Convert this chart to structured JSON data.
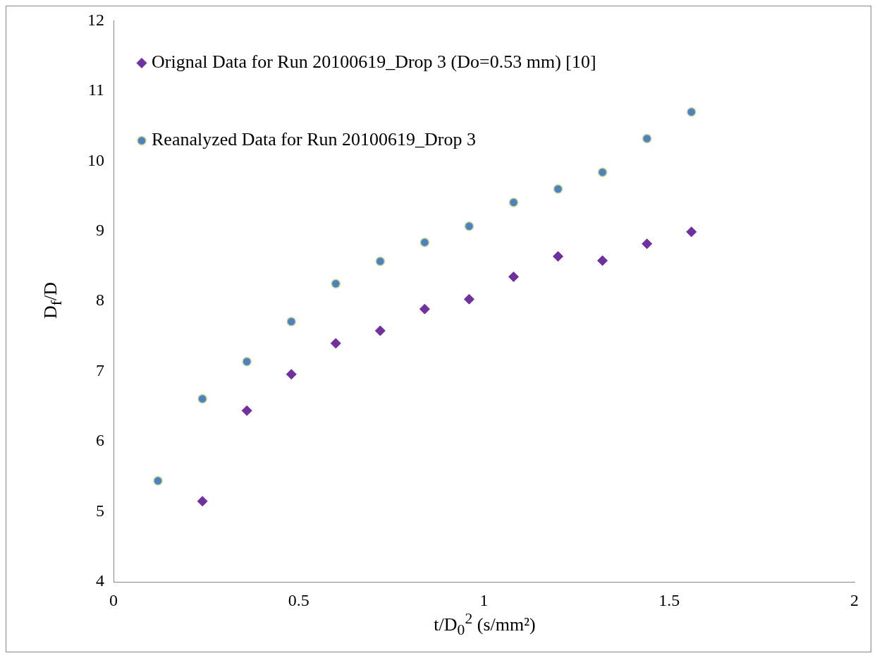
{
  "chart_data": {
    "type": "scatter",
    "xlabel": "t/D$_{0}$$^{2}$ (s/mm²)",
    "ylabel": "D$_{f}$/D",
    "xlim": [
      0,
      2
    ],
    "xticks": [
      0,
      0.5,
      1,
      1.5,
      2
    ],
    "ylim": [
      4,
      12
    ],
    "yticks": [
      4,
      5,
      6,
      7,
      8,
      9,
      10,
      11,
      12
    ],
    "grid": false,
    "legend": "top left",
    "series": [
      {
        "name": "Orignal Data for Run 20100619_Drop 3 (Do=0.53 mm) [10]",
        "color": "#7030a0",
        "marker": "diamond",
        "x": [
          0.24,
          0.36,
          0.48,
          0.6,
          0.72,
          0.84,
          0.96,
          1.08,
          1.2,
          1.32,
          1.44,
          1.56
        ],
        "values": [
          5.15,
          6.44,
          6.96,
          7.4,
          7.58,
          7.89,
          8.03,
          8.35,
          8.64,
          8.58,
          8.82,
          8.99
        ]
      },
      {
        "name": "Reanalyzed Data for Run 20100619_Drop 3",
        "color": "#4f81bd",
        "marker": "circle",
        "x": [
          0.12,
          0.24,
          0.36,
          0.48,
          0.6,
          0.72,
          0.84,
          0.96,
          1.08,
          1.2,
          1.32,
          1.44,
          1.56
        ],
        "values": [
          5.44,
          6.61,
          7.14,
          7.71,
          8.25,
          8.57,
          8.84,
          9.07,
          9.41,
          9.6,
          9.84,
          10.32,
          10.7
        ]
      }
    ]
  }
}
